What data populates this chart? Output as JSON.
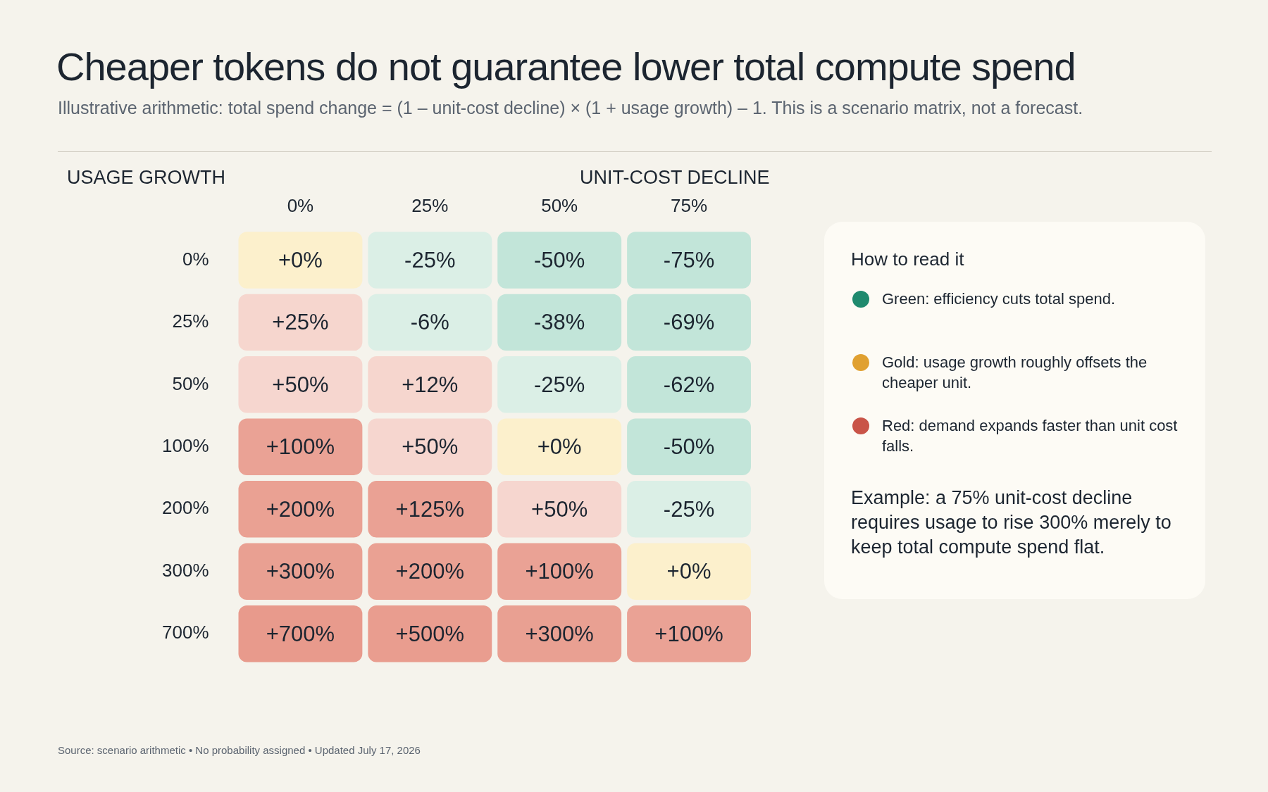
{
  "chart_data": {
    "type": "heatmap",
    "title": "Cheaper tokens do not guarantee lower total compute spend",
    "subtitle": "Illustrative arithmetic: total spend change = (1 – unit-cost decline) × (1 + usage growth) – 1. This is a scenario matrix, not a forecast.",
    "xlabel": "UNIT-COST DECLINE",
    "ylabel": "USAGE GROWTH",
    "categories": [
      "0%",
      "25%",
      "50%",
      "75%"
    ],
    "y_categories": [
      "0%",
      "25%",
      "50%",
      "100%",
      "200%",
      "300%",
      "700%"
    ],
    "cells": [
      [
        0,
        -25,
        -50,
        -75
      ],
      [
        25,
        -6,
        -38,
        -69
      ],
      [
        50,
        12,
        -25,
        -62
      ],
      [
        100,
        50,
        0,
        -50
      ],
      [
        200,
        125,
        50,
        -25
      ],
      [
        300,
        200,
        100,
        0
      ],
      [
        700,
        500,
        300,
        100
      ]
    ],
    "cell_labels": [
      [
        "+0%",
        "-25%",
        "-50%",
        "-75%"
      ],
      [
        "+25%",
        "-6%",
        "-38%",
        "-69%"
      ],
      [
        "+50%",
        "+12%",
        "-25%",
        "-62%"
      ],
      [
        "+100%",
        "+50%",
        "+0%",
        "-50%"
      ],
      [
        "+200%",
        "+125%",
        "+50%",
        "-25%"
      ],
      [
        "+300%",
        "+200%",
        "+100%",
        "+0%"
      ],
      [
        "+700%",
        "+500%",
        "+300%",
        "+100%"
      ]
    ],
    "colors": [
      [
        "#fdf0c9",
        "#d8eee6",
        "#bde3d6",
        "#bde3d6"
      ],
      [
        "#f6d3cb",
        "#d8eee6",
        "#bde3d6",
        "#bde3d6"
      ],
      [
        "#f6d3cb",
        "#f6d3cb",
        "#d8eee6",
        "#bde3d6"
      ],
      [
        "#e89a8c",
        "#f6d3cb",
        "#fdf0c9",
        "#bde3d6"
      ],
      [
        "#e89a8c",
        "#e89a8c",
        "#f6d3cb",
        "#d8eee6"
      ],
      [
        "#e89a8c",
        "#e89a8c",
        "#e89a8c",
        "#fdf0c9"
      ],
      [
        "#e89a8c",
        "#e89a8c",
        "#e89a8c",
        "#e89a8c"
      ]
    ],
    "annotations": [
      "How to read it",
      "Green: efficiency cuts total spend.",
      "Gold: usage growth roughly offsets the cheaper unit.",
      "Red: demand expands faster than unit cost falls.",
      "Example: a 75% unit-cost decline requires usage to rise 300% merely to keep total compute spend flat.",
      "Source: scenario arithmetic • No probability assigned • Updated July 17, 2026"
    ]
  }
}
